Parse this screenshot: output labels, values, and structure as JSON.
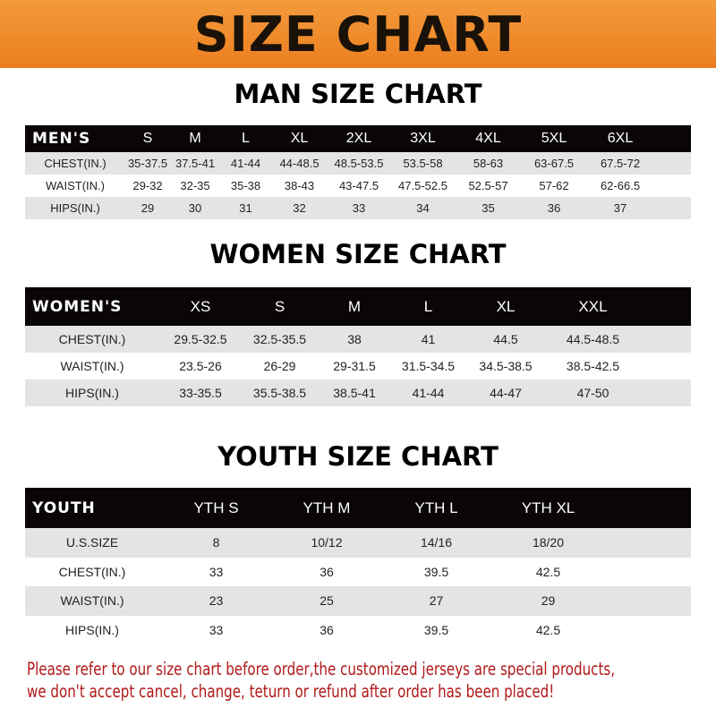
{
  "banner": "SIZE CHART",
  "men": {
    "title": "MAN SIZE CHART",
    "header": [
      "MEN'S",
      "S",
      "M",
      "L",
      "XL",
      "2XL",
      "3XL",
      "4XL",
      "5XL",
      "6XL"
    ],
    "rows": [
      [
        "CHEST(IN.)",
        "35-37.5",
        "37.5-41",
        "41-44",
        "44-48.5",
        "48.5-53.5",
        "53.5-58",
        "58-63",
        "63-67.5",
        "67.5-72"
      ],
      [
        "WAIST(IN.)",
        "29-32",
        "32-35",
        "35-38",
        "38-43",
        "43-47.5",
        "47.5-52.5",
        "52.5-57",
        "57-62",
        "62-66.5"
      ],
      [
        "HIPS(IN.)",
        "29",
        "30",
        "31",
        "32",
        "33",
        "34",
        "35",
        "36",
        "37"
      ]
    ]
  },
  "women": {
    "title": "WOMEN SIZE CHART",
    "header": [
      "WOMEN'S",
      "XS",
      "S",
      "M",
      "L",
      "XL",
      "XXL"
    ],
    "rows": [
      [
        "CHEST(IN.)",
        "29.5-32.5",
        "32.5-35.5",
        "38",
        "41",
        "44.5",
        "44.5-48.5"
      ],
      [
        "WAIST(IN.)",
        "23.5-26",
        "26-29",
        "29-31.5",
        "31.5-34.5",
        "34.5-38.5",
        "38.5-42.5"
      ],
      [
        "HIPS(IN.)",
        "33-35.5",
        "35.5-38.5",
        "38.5-41",
        "41-44",
        "44-47",
        "47-50"
      ]
    ]
  },
  "youth": {
    "title": "YOUTH SIZE CHART",
    "header": [
      "YOUTH",
      "YTH S",
      "YTH M",
      "YTH L",
      "YTH XL"
    ],
    "rows": [
      [
        "U.S.SIZE",
        "8",
        "10/12",
        "14/16",
        "18/20"
      ],
      [
        "CHEST(IN.)",
        "33",
        "36",
        "39.5",
        "42.5"
      ],
      [
        "WAIST(IN.)",
        "23",
        "25",
        "27",
        "29"
      ],
      [
        "HIPS(IN.)",
        "33",
        "36",
        "39.5",
        "42.5"
      ]
    ]
  },
  "note": {
    "line1": "Please refer to our size chart before order,the customized jerseys are special products,",
    "line2": "we don't accept cancel, change, teturn or refund after order has been placed!"
  }
}
